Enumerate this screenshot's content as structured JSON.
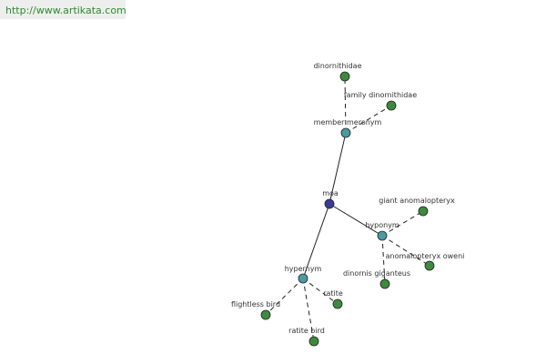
{
  "header": {
    "url": "http://www.artikata.com"
  },
  "nodes": [
    {
      "label": "moa"
    },
    {
      "label": "member meronym"
    },
    {
      "label": "dinornithidae"
    },
    {
      "label": "family dinornithidae"
    },
    {
      "label": "hyponym"
    },
    {
      "label": "giant anomalopteryx"
    },
    {
      "label": "anomalopteryx oweni"
    },
    {
      "label": "dinornis giganteus"
    },
    {
      "label": "hypernym"
    },
    {
      "label": "ratite"
    },
    {
      "label": "flightless bird"
    },
    {
      "label": "ratite bird"
    }
  ]
}
